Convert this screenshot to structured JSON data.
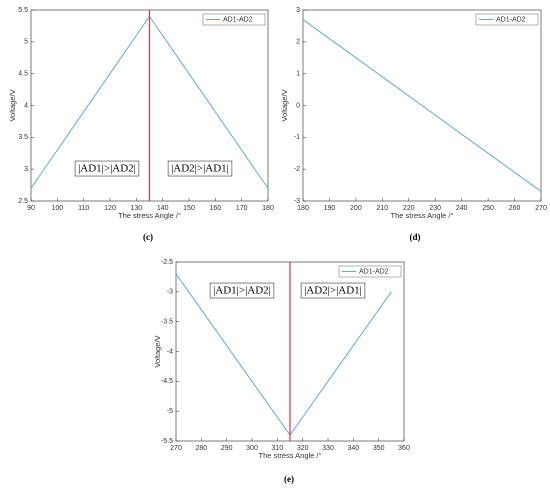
{
  "chart_data": [
    {
      "type": "line",
      "caption": "(c)",
      "xlabel": "The stress Angle /°",
      "ylabel": "Voltage/V",
      "x": [
        90,
        135,
        180
      ],
      "series": [
        {
          "name": "AD1-AD2",
          "color": "#5fa8dc",
          "values": [
            2.7,
            5.4,
            2.7
          ]
        }
      ],
      "xlim": [
        90,
        180
      ],
      "xticks": [
        90,
        100,
        110,
        120,
        130,
        140,
        150,
        160,
        170,
        180
      ],
      "ylim": [
        2.5,
        5.5
      ],
      "yticks": [
        2.5,
        3,
        3.5,
        4,
        4.5,
        5,
        5.5
      ],
      "vline": {
        "x": 135,
        "color": "#e8303a"
      },
      "annotations": [
        "|AD1|>|AD2|",
        "|AD2|>|AD1|"
      ],
      "legend": "upper right"
    },
    {
      "type": "line",
      "caption": "(d)",
      "xlabel": "The stress Angle /°",
      "ylabel": "Voltage/V",
      "x": [
        180,
        270
      ],
      "series": [
        {
          "name": "AD1-AD2",
          "color": "#5fa8dc",
          "values": [
            2.7,
            -2.7
          ]
        }
      ],
      "xlim": [
        180,
        270
      ],
      "xticks": [
        180,
        190,
        200,
        210,
        220,
        230,
        240,
        250,
        260,
        270
      ],
      "ylim": [
        -3,
        3
      ],
      "yticks": [
        -3,
        -2,
        -1,
        0,
        1,
        2,
        3
      ],
      "legend": "upper right"
    },
    {
      "type": "line",
      "caption": "(e)",
      "xlabel": "The stress Angle /°",
      "ylabel": "Voltage/V",
      "x": [
        270,
        315,
        355
      ],
      "series": [
        {
          "name": "AD1-AD2",
          "color": "#5fa8dc",
          "values": [
            -2.7,
            -5.4,
            -3.0
          ]
        }
      ],
      "xlim": [
        270,
        360
      ],
      "xticks": [
        270,
        280,
        290,
        300,
        310,
        320,
        330,
        340,
        350,
        360
      ],
      "ylim": [
        -5.5,
        -2.5
      ],
      "yticks": [
        -5.5,
        -5,
        -4.5,
        -4,
        -3.5,
        -3,
        -2.5
      ],
      "vline": {
        "x": 315,
        "color": "#e8303a"
      },
      "annotations": [
        "|AD1|>|AD2|",
        "|AD2|>|AD1|"
      ],
      "legend": "upper right"
    }
  ]
}
